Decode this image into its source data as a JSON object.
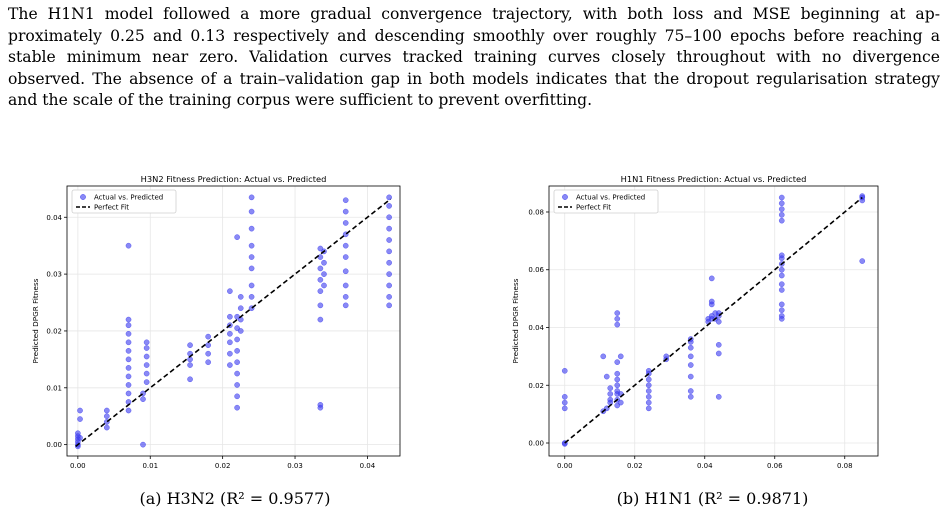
{
  "paragraph": "The H1N1 model followed a more gradual convergence trajectory, with both loss and MSE beginning at ap­proximately 0.25 and 0.13 respectively and descending smoothly over roughly 75–100 epochs before reaching a stable minimum near zero. Validation curves tracked training curves closely throughout with no divergence observed. The absence of a train–validation gap in both models indicates that the dropout regularisation strategy and the scale of the training corpus were sufficient to prevent overfitting.",
  "captions": {
    "a": "(a) H3N2 (R² = 0.9577)",
    "b": "(b) H1N1 (R² = 0.9871)"
  },
  "chart_data": [
    {
      "type": "scatter",
      "title": "H3N2 Fitness Prediction: Actual vs. Predicted",
      "xlabel": "Actual DPGR Fitness (True)",
      "ylabel": "Predicted DPGR Fitness",
      "xlim": [
        -0.0015,
        0.0445
      ],
      "ylim": [
        -0.002,
        0.0455
      ],
      "xticks": [
        0.0,
        0.01,
        0.02,
        0.03,
        0.04
      ],
      "xtick_labels": [
        "0.00",
        "0.01",
        "0.02",
        "0.03",
        "0.04"
      ],
      "yticks": [
        0.0,
        0.01,
        0.02,
        0.03,
        0.04
      ],
      "ytick_labels": [
        "0.00",
        "0.01",
        "0.02",
        "0.03",
        "0.04"
      ],
      "grid": true,
      "legend": {
        "position": "top-left",
        "entries": [
          "Actual vs. Predicted",
          "Perfect Fit"
        ]
      },
      "colors": {
        "points": "#3b3bef",
        "line": "#000000"
      },
      "perfect_fit": [
        [
          -0.0003,
          -0.0003
        ],
        [
          0.0432,
          0.0432
        ]
      ],
      "groups": [
        {
          "x": 0.0,
          "y": [
            0.0,
            -0.0003,
            0.0005,
            0.001,
            0.0015,
            0.002
          ]
        },
        {
          "x": 0.0003,
          "y": [
            0.006,
            0.0045,
            0.0012
          ]
        },
        {
          "x": 0.004,
          "y": [
            0.003,
            0.004,
            0.005,
            0.006
          ]
        },
        {
          "x": 0.007,
          "y": [
            0.006,
            0.0075,
            0.009,
            0.0105,
            0.012,
            0.0135,
            0.015,
            0.0165,
            0.018,
            0.0195,
            0.021,
            0.022,
            0.035
          ]
        },
        {
          "x": 0.009,
          "y": [
            0.0,
            0.008,
            0.009
          ]
        },
        {
          "x": 0.0095,
          "y": [
            0.011,
            0.0125,
            0.014,
            0.0155,
            0.017,
            0.018
          ]
        },
        {
          "x": 0.0155,
          "y": [
            0.0115,
            0.014,
            0.015,
            0.016,
            0.0175
          ]
        },
        {
          "x": 0.018,
          "y": [
            0.0145,
            0.016,
            0.0175,
            0.019
          ]
        },
        {
          "x": 0.021,
          "y": [
            0.014,
            0.016,
            0.018,
            0.0195,
            0.021,
            0.0225,
            0.027
          ]
        },
        {
          "x": 0.022,
          "y": [
            0.0065,
            0.0085,
            0.0105,
            0.0125,
            0.0145,
            0.0165,
            0.0185,
            0.0205,
            0.0225,
            0.0365
          ]
        },
        {
          "x": 0.0225,
          "y": [
            0.02,
            0.022,
            0.024,
            0.026
          ]
        },
        {
          "x": 0.024,
          "y": [
            0.024,
            0.026,
            0.028,
            0.031,
            0.033,
            0.035,
            0.038,
            0.041,
            0.0435
          ]
        },
        {
          "x": 0.0335,
          "y": [
            0.0065,
            0.007,
            0.022,
            0.0245,
            0.027,
            0.029,
            0.031,
            0.033,
            0.0345
          ]
        },
        {
          "x": 0.034,
          "y": [
            0.028,
            0.03,
            0.032,
            0.034
          ]
        },
        {
          "x": 0.037,
          "y": [
            0.0245,
            0.026,
            0.028,
            0.0305,
            0.033,
            0.035,
            0.037,
            0.039,
            0.041,
            0.043
          ]
        },
        {
          "x": 0.043,
          "y": [
            0.0245,
            0.026,
            0.028,
            0.03,
            0.032,
            0.034,
            0.036,
            0.038,
            0.04,
            0.042,
            0.0435
          ]
        }
      ]
    },
    {
      "type": "scatter",
      "title": "H1N1 Fitness Prediction: Actual vs. Predicted",
      "xlabel": "Actual DPGR Fitness (True)",
      "ylabel": "Predicted DPGR Fitness",
      "xlim": [
        -0.0045,
        0.0895
      ],
      "ylim": [
        -0.0045,
        0.089
      ],
      "xticks": [
        0.0,
        0.02,
        0.04,
        0.06,
        0.08
      ],
      "xtick_labels": [
        "0.00",
        "0.02",
        "0.04",
        "0.06",
        "0.08"
      ],
      "yticks": [
        0.0,
        0.02,
        0.04,
        0.06,
        0.08
      ],
      "ytick_labels": [
        "0.00",
        "0.02",
        "0.04",
        "0.06",
        "0.08"
      ],
      "grid": true,
      "legend": {
        "position": "top-left",
        "entries": [
          "Actual vs. Predicted",
          "Perfect Fit"
        ]
      },
      "colors": {
        "points": "#3b3bef",
        "line": "#000000"
      },
      "perfect_fit": [
        [
          0.0,
          0.0
        ],
        [
          0.085,
          0.085
        ]
      ],
      "groups": [
        {
          "x": 0.0,
          "y": [
            -0.0003,
            0.0,
            0.012,
            0.014,
            0.016,
            0.025
          ]
        },
        {
          "x": 0.011,
          "y": [
            0.011,
            0.03
          ]
        },
        {
          "x": 0.012,
          "y": [
            0.012,
            0.023
          ]
        },
        {
          "x": 0.013,
          "y": [
            0.014,
            0.015,
            0.017,
            0.019
          ]
        },
        {
          "x": 0.015,
          "y": [
            0.013,
            0.015,
            0.017,
            0.018,
            0.02,
            0.022,
            0.024,
            0.028,
            0.041,
            0.043,
            0.045
          ]
        },
        {
          "x": 0.016,
          "y": [
            0.014,
            0.017,
            0.03
          ]
        },
        {
          "x": 0.024,
          "y": [
            0.012,
            0.014,
            0.016,
            0.018,
            0.02,
            0.022,
            0.024,
            0.025
          ]
        },
        {
          "x": 0.029,
          "y": [
            0.029,
            0.03
          ]
        },
        {
          "x": 0.036,
          "y": [
            0.016,
            0.018,
            0.023,
            0.027,
            0.03,
            0.033,
            0.035,
            0.036
          ]
        },
        {
          "x": 0.041,
          "y": [
            0.042,
            0.043
          ]
        },
        {
          "x": 0.042,
          "y": [
            0.043,
            0.044,
            0.048,
            0.049,
            0.057
          ]
        },
        {
          "x": 0.043,
          "y": [
            0.043,
            0.045
          ]
        },
        {
          "x": 0.044,
          "y": [
            0.016,
            0.031,
            0.034,
            0.042,
            0.044,
            0.045
          ]
        },
        {
          "x": 0.062,
          "y": [
            0.043,
            0.044,
            0.046,
            0.048,
            0.053,
            0.055,
            0.058,
            0.06,
            0.062,
            0.064,
            0.065,
            0.077,
            0.079,
            0.081,
            0.083,
            0.085
          ]
        },
        {
          "x": 0.085,
          "y": [
            0.063,
            0.084,
            0.085,
            0.0855
          ]
        }
      ]
    }
  ]
}
